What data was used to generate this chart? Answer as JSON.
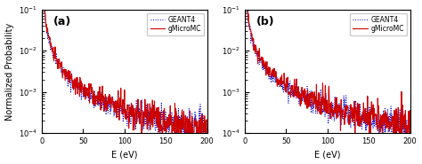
{
  "xlim": [
    0,
    200
  ],
  "ylim": [
    0.0001,
    0.1
  ],
  "xlabel": "E (eV)",
  "ylabel": "Normalized Probability",
  "panel_labels": [
    "(a)",
    "(b)"
  ],
  "legend_entries": [
    "GEANT4",
    "gMicroMC"
  ],
  "geant4_color": "#0000cc",
  "gmicromc_color": "#cc0000",
  "xticks": [
    0,
    50,
    100,
    150,
    200
  ],
  "background_color": "#ffffff",
  "n_points": 500,
  "power_law_exp": 1.6,
  "amplitude": 0.55,
  "noise_base": 0.06,
  "noise_grow": 0.18
}
